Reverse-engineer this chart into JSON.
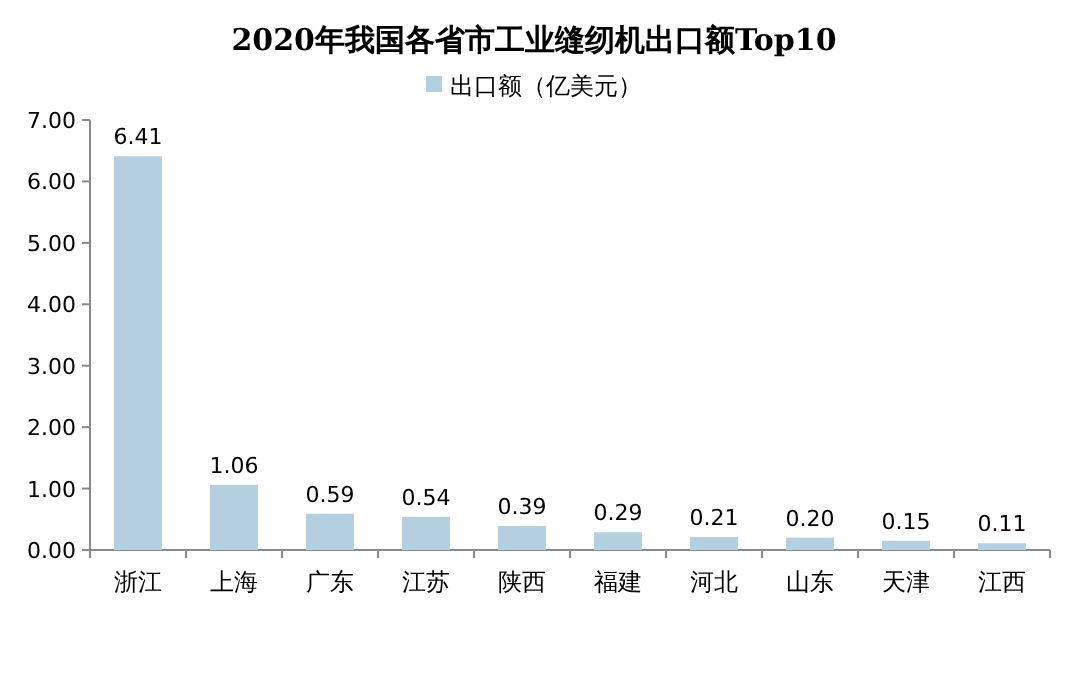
{
  "chart_data": {
    "type": "bar",
    "title": "2020年我国各省市工业缝纫机出口额Top10",
    "categories": [
      "浙江",
      "上海",
      "广东",
      "江苏",
      "陕西",
      "福建",
      "河北",
      "山东",
      "天津",
      "江西"
    ],
    "series": [
      {
        "name": "出口额（亿美元）",
        "color": "#b4cfdf",
        "values": [
          6.41,
          1.06,
          0.59,
          0.54,
          0.39,
          0.29,
          0.21,
          0.2,
          0.15,
          0.11
        ],
        "value_labels": [
          "6.41",
          "1.06",
          "0.59",
          "0.54",
          "0.39",
          "0.29",
          "0.21",
          "0.20",
          "0.15",
          "0.11"
        ]
      }
    ],
    "ylim": [
      0,
      7
    ],
    "yticks": [
      {
        "value": 0,
        "label": "0.00"
      },
      {
        "value": 1,
        "label": "1.00"
      },
      {
        "value": 2,
        "label": "2.00"
      },
      {
        "value": 3,
        "label": "3.00"
      },
      {
        "value": 4,
        "label": "4.00"
      },
      {
        "value": 5,
        "label": "5.00"
      },
      {
        "value": 6,
        "label": "6.00"
      },
      {
        "value": 7,
        "label": "7.00"
      }
    ],
    "legend": "top",
    "grid": false
  }
}
